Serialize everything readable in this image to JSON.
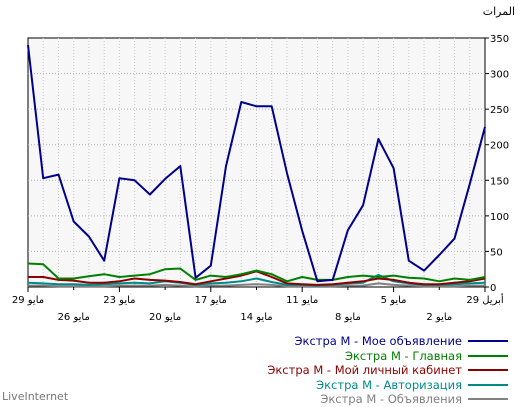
{
  "chart_data": {
    "type": "line",
    "ylabel": "المرات",
    "ylim": [
      0,
      350
    ],
    "yticks": [
      0,
      50,
      100,
      150,
      200,
      250,
      300,
      350
    ],
    "grid": true,
    "x_ticks_row1": [
      {
        "label": "29 مايو",
        "index": 0
      },
      {
        "label": "23 مايو",
        "index": 6
      },
      {
        "label": "17 مايو",
        "index": 12
      },
      {
        "label": "11 مايو",
        "index": 18
      },
      {
        "label": "5 مايو",
        "index": 24
      },
      {
        "label": "29 أبريل",
        "index": 30
      }
    ],
    "x_ticks_row2": [
      {
        "label": "26 مايو",
        "index": 3
      },
      {
        "label": "20 مايو",
        "index": 9
      },
      {
        "label": "14 مايو",
        "index": 15
      },
      {
        "label": "8 مايو",
        "index": 21
      },
      {
        "label": "2 مايو",
        "index": 27
      }
    ],
    "series": [
      {
        "name": "Экстра М - Мое объявление",
        "color": "#00008b",
        "values": [
          340,
          153,
          158,
          92,
          71,
          37,
          153,
          150,
          130,
          152,
          170,
          13,
          30,
          170,
          260,
          254,
          254,
          160,
          79,
          8,
          10,
          80,
          115,
          208,
          167,
          37,
          23,
          45,
          68,
          145,
          225
        ]
      },
      {
        "name": "Экстра М - Главная",
        "color": "#008000",
        "values": [
          33,
          32,
          12,
          12,
          15,
          18,
          14,
          16,
          18,
          25,
          26,
          10,
          16,
          14,
          18,
          23,
          18,
          8,
          14,
          10,
          10,
          14,
          16,
          14,
          16,
          13,
          12,
          8,
          12,
          10,
          14
        ]
      },
      {
        "name": "Экстра М - Мой личный кабинет",
        "color": "#8b0000",
        "values": [
          14,
          14,
          10,
          9,
          6,
          6,
          8,
          12,
          10,
          9,
          7,
          4,
          8,
          12,
          16,
          22,
          14,
          5,
          4,
          3,
          4,
          6,
          8,
          12,
          10,
          6,
          4,
          4,
          6,
          8,
          12
        ]
      },
      {
        "name": "Экстра М - Авторизация",
        "color": "#008b8b",
        "values": [
          6,
          5,
          4,
          4,
          3,
          4,
          5,
          6,
          5,
          8,
          6,
          3,
          5,
          6,
          8,
          12,
          7,
          3,
          3,
          2,
          3,
          5,
          6,
          17,
          8,
          5,
          3,
          3,
          4,
          5,
          6
        ]
      },
      {
        "name": "Экстра М - Объявления",
        "color": "#808080",
        "values": [
          2,
          2,
          1,
          1,
          1,
          1,
          2,
          2,
          2,
          3,
          2,
          1,
          2,
          2,
          3,
          4,
          3,
          1,
          1,
          1,
          1,
          2,
          2,
          5,
          3,
          2,
          1,
          1,
          1,
          2,
          2
        ]
      }
    ]
  },
  "footer": {
    "brand": "LiveInternet"
  }
}
